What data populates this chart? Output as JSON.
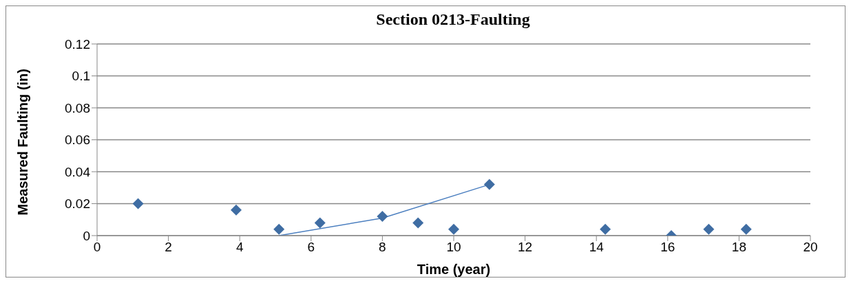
{
  "chart_data": {
    "type": "scatter",
    "title": "Section 0213-Faulting",
    "xlabel": "Time (year)",
    "ylabel": "Measured Faulting (in)",
    "series": [
      {
        "color": "#3f6da3",
        "x": [
          1.15,
          3.9,
          5.1,
          6.25,
          8,
          9,
          10,
          11,
          14.25,
          16.1,
          17.15,
          18.2
        ],
        "values": [
          0.02,
          0.016,
          0.004,
          0.008,
          0.012,
          0.008,
          0.004,
          0.032,
          0.004,
          0,
          0.004,
          0.004
        ]
      },
      {
        "type": "line",
        "color": "#4a7ebf",
        "x": [
          5.1,
          8,
          11
        ],
        "values": [
          0,
          0.011,
          0.032
        ],
        "marker": "none"
      }
    ],
    "xlim": [
      0,
      20
    ],
    "xticks": [
      0,
      2,
      4,
      6,
      8,
      10,
      12,
      14,
      16,
      18,
      20
    ],
    "ylim": [
      0,
      0.12
    ],
    "yticks": [
      0,
      0.02,
      0.04,
      0.06,
      0.08,
      0.1,
      0.12
    ],
    "grid": "y",
    "legend": false,
    "marker": "diamond"
  }
}
